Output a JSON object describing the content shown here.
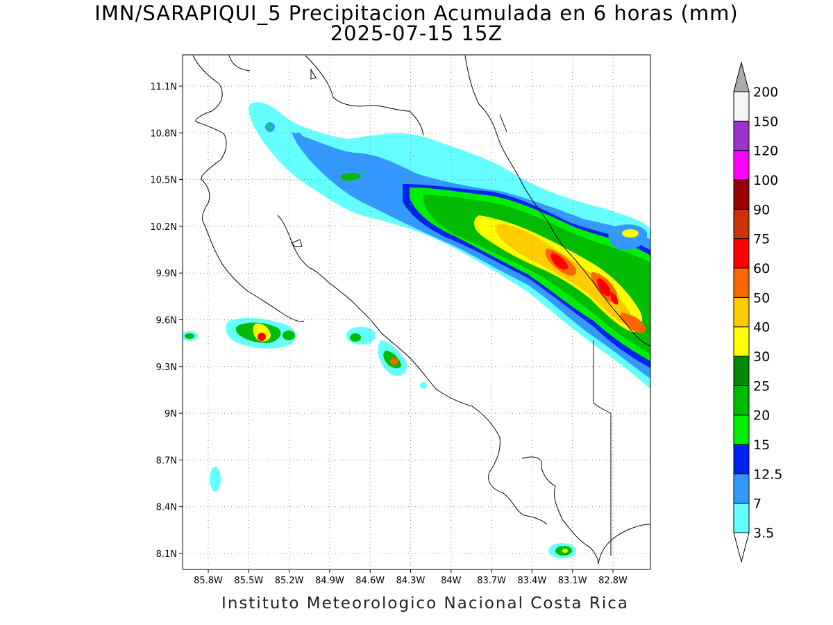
{
  "title": "IMN/SARAPIQUI_5 Precipitacion Acumulada en 6 horas (mm)",
  "subtitle": "2025-07-15 15Z",
  "footer": "Instituto Meteorologico Nacional Costa Rica",
  "lat_ticks": [
    "11.1N",
    "10.8N",
    "10.5N",
    "10.2N",
    "9.9N",
    "9.6N",
    "9.3N",
    "9N",
    "8.7N",
    "8.4N",
    "8.1N"
  ],
  "lon_ticks": [
    "85.8W",
    "85.5W",
    "85.2W",
    "84.9W",
    "84.6W",
    "84.3W",
    "84W",
    "83.7W",
    "83.4W",
    "83.1W",
    "82.8W"
  ],
  "colorbar": {
    "levels": [
      "3.5",
      "7",
      "12.5",
      "15",
      "20",
      "25",
      "30",
      "40",
      "50",
      "60",
      "75",
      "90",
      "100",
      "120",
      "150",
      "200"
    ],
    "colors": [
      "#66ffff",
      "#3399ff",
      "#0022ee",
      "#00ee00",
      "#00bb00",
      "#008800",
      "#ffff00",
      "#ffcc00",
      "#ff6600",
      "#ff0000",
      "#cc3300",
      "#990000",
      "#ff00ff",
      "#9933cc",
      "#f5f5f5"
    ],
    "top_arrow_color": "#aaaaaa"
  }
}
